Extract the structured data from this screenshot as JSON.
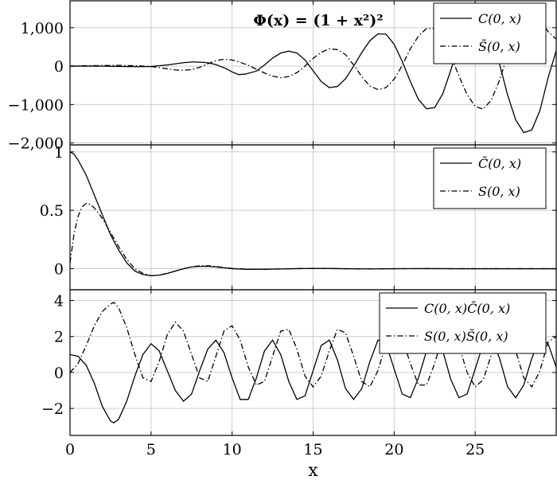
{
  "chart_data": [
    {
      "type": "line",
      "title": "Φ(x) = (1 + x²)²",
      "xlabel": "",
      "ylabel": "",
      "xlim": [
        0,
        30
      ],
      "ylim": [
        -2050,
        1700
      ],
      "grid": true,
      "legend_position": "top-right",
      "x_ticks": [
        0,
        5,
        10,
        15,
        20,
        25
      ],
      "y_ticks": [
        -2000,
        -1000,
        0,
        1000
      ],
      "y_tick_labels": [
        "−2,000",
        "−1,000",
        "0",
        "1,000"
      ],
      "series": [
        {
          "name": "C(0, x)",
          "style": "solid",
          "x": [
            0,
            1,
            2,
            3,
            4,
            5,
            6,
            7,
            7.6,
            8.5,
            9,
            9.6,
            10,
            10.4,
            10.8,
            11.5,
            12,
            12.5,
            13,
            13.5,
            14,
            14.5,
            15,
            15.5,
            16,
            16.5,
            17,
            17.5,
            18,
            18.5,
            19,
            19.5,
            20,
            20.5,
            21,
            21.5,
            22,
            22.5,
            23,
            23.5,
            24,
            24.5,
            25,
            25.5,
            26,
            26.5,
            27,
            27.5,
            28,
            28.5,
            29,
            29.5,
            30
          ],
          "values": [
            0,
            0,
            -2,
            -8,
            -15,
            -10,
            30,
            90,
            110,
            90,
            40,
            -60,
            -150,
            -220,
            -210,
            -130,
            30,
            210,
            340,
            390,
            340,
            160,
            -120,
            -400,
            -560,
            -530,
            -330,
            0,
            350,
            660,
            840,
            830,
            570,
            120,
            -400,
            -870,
            -1110,
            -1080,
            -720,
            -100,
            590,
            1100,
            1360,
            1250,
            810,
            60,
            -750,
            -1400,
            -1730,
            -1660,
            -1150,
            -300,
            400
          ]
        },
        {
          "name": "S̃(0, x)",
          "style": "dashdot",
          "x": [
            0,
            1,
            2,
            3,
            4,
            5,
            6,
            6.5,
            7,
            7.5,
            8,
            8.5,
            9,
            9.5,
            10,
            10.5,
            11,
            11.5,
            12,
            12.5,
            13,
            13.5,
            14,
            14.5,
            15,
            15.5,
            16,
            16.5,
            17,
            17.5,
            18,
            18.5,
            19,
            19.5,
            20,
            20.5,
            21,
            21.5,
            22,
            22.5,
            23,
            23.5,
            24,
            24.5,
            25,
            25.5,
            26,
            26.5,
            27,
            27.5,
            28,
            28.5,
            29,
            29.5,
            30
          ],
          "values": [
            0,
            10,
            15,
            20,
            10,
            -10,
            -70,
            -100,
            -110,
            -90,
            -30,
            60,
            140,
            180,
            160,
            100,
            20,
            -80,
            -180,
            -260,
            -300,
            -270,
            -170,
            0,
            200,
            360,
            450,
            430,
            300,
            30,
            -270,
            -520,
            -610,
            -560,
            -340,
            20,
            450,
            780,
            980,
            980,
            720,
            270,
            -260,
            -740,
            -1050,
            -1120,
            -880,
            -370,
            290,
            900,
            1300,
            1400,
            1200,
            900,
            700
          ]
        }
      ]
    },
    {
      "type": "line",
      "title": "",
      "xlabel": "",
      "ylabel": "",
      "xlim": [
        0,
        30
      ],
      "ylim": [
        -0.18,
        1.06
      ],
      "grid": true,
      "legend_position": "top-right",
      "x_ticks": [
        0,
        5,
        10,
        15,
        20,
        25
      ],
      "y_ticks": [
        0,
        0.5,
        1
      ],
      "y_tick_labels": [
        "0",
        "0.5",
        "1"
      ],
      "series": [
        {
          "name": "C̃(0, x)",
          "style": "solid",
          "x": [
            0,
            0.25,
            0.5,
            1,
            1.5,
            2,
            2.5,
            3,
            3.5,
            4,
            4.5,
            5,
            5.5,
            6,
            6.5,
            7,
            7.5,
            8,
            8.5,
            9,
            9.5,
            10,
            11,
            12,
            13,
            14,
            15,
            16,
            17,
            18,
            19,
            20,
            22,
            24,
            26,
            28,
            30
          ],
          "values": [
            1,
            0.98,
            0.93,
            0.8,
            0.63,
            0.46,
            0.29,
            0.16,
            0.05,
            -0.02,
            -0.05,
            -0.06,
            -0.055,
            -0.04,
            -0.02,
            0,
            0.015,
            0.02,
            0.02,
            0.015,
            0.008,
            0,
            -0.005,
            -0.004,
            -0.002,
            0.001,
            0.002,
            0.002,
            0,
            -0.001,
            -0.001,
            0,
            0.001,
            0,
            0,
            0,
            0
          ]
        },
        {
          "name": "S(0, x)",
          "style": "dashdot",
          "x": [
            0,
            0.25,
            0.5,
            0.75,
            1,
            1.25,
            1.5,
            2,
            2.5,
            3,
            3.5,
            4,
            4.5,
            5,
            5.5,
            6,
            6.5,
            7,
            7.5,
            8,
            8.5,
            9,
            9.5,
            10,
            11,
            12,
            13,
            14,
            15,
            16,
            17,
            18,
            19,
            20,
            22,
            24,
            26,
            28,
            30
          ],
          "values": [
            0.05,
            0.3,
            0.45,
            0.53,
            0.56,
            0.55,
            0.52,
            0.43,
            0.31,
            0.19,
            0.08,
            0,
            -0.04,
            -0.06,
            -0.055,
            -0.04,
            -0.02,
            0,
            0.015,
            0.025,
            0.025,
            0.02,
            0.01,
            0.003,
            -0.004,
            -0.005,
            -0.002,
            0.001,
            0.003,
            0.002,
            0,
            -0.001,
            -0.001,
            0,
            0.001,
            0,
            0,
            0,
            0
          ]
        }
      ]
    },
    {
      "type": "line",
      "title": "",
      "xlabel": "x",
      "ylabel": "",
      "xlim": [
        0,
        30
      ],
      "ylim": [
        -3.5,
        4.6
      ],
      "grid": true,
      "legend_position": "top-right",
      "x_ticks": [
        0,
        5,
        10,
        15,
        20,
        25
      ],
      "y_ticks": [
        -2,
        0,
        2,
        4
      ],
      "y_tick_labels": [
        "−2",
        "0",
        "2",
        "4"
      ],
      "series": [
        {
          "name": "C(0, x)C̃(0, x)",
          "style": "solid",
          "x": [
            0,
            0.5,
            1,
            1.5,
            2,
            2.5,
            2.7,
            3,
            3.5,
            4,
            4.5,
            5,
            5.5,
            6,
            6.5,
            7,
            7.5,
            8,
            8.5,
            9,
            9.5,
            10,
            10.5,
            11,
            11.5,
            12,
            12.5,
            13,
            13.5,
            14,
            14.5,
            15,
            15.5,
            16,
            16.5,
            17,
            17.5,
            18,
            18.5,
            19,
            19.5,
            20,
            20.5,
            21,
            21.5,
            22,
            22.5,
            23,
            23.5,
            24,
            24.5,
            25,
            25.5,
            26,
            26.5,
            27,
            27.5,
            28,
            28.5,
            29,
            29.5,
            30
          ],
          "values": [
            1,
            0.9,
            0.4,
            -0.6,
            -1.9,
            -2.7,
            -2.8,
            -2.6,
            -1.6,
            -0.2,
            1.0,
            1.6,
            1.2,
            0.1,
            -1.0,
            -1.6,
            -1.2,
            0.1,
            1.3,
            1.8,
            1.1,
            -0.3,
            -1.5,
            -1.5,
            -0.3,
            1.2,
            1.8,
            1.0,
            -0.5,
            -1.5,
            -1.3,
            0.1,
            1.5,
            1.8,
            0.7,
            -0.9,
            -1.5,
            -0.9,
            0.6,
            1.8,
            1.6,
            0.2,
            -1.2,
            -1.4,
            -0.3,
            1.2,
            1.9,
            1.2,
            -0.4,
            -1.4,
            -1.2,
            0.2,
            1.6,
            1.9,
            0.8,
            -0.8,
            -1.4,
            -0.7,
            0.8,
            1.9,
            1.6,
            0.3
          ]
        },
        {
          "name": "S(0, x)S̃(0, x)",
          "style": "dashdot",
          "x": [
            0,
            0.5,
            1,
            1.5,
            2,
            2.5,
            2.7,
            3,
            3.5,
            4,
            4.5,
            5,
            5.5,
            6,
            6.5,
            7,
            7.5,
            8,
            8.5,
            9,
            9.5,
            10,
            10.5,
            11,
            11.5,
            12,
            12.5,
            13,
            13.5,
            14,
            14.5,
            15,
            15.5,
            16,
            16.5,
            17,
            17.5,
            18,
            18.5,
            19,
            19.5,
            20,
            20.5,
            21,
            21.5,
            22,
            22.5,
            23,
            23.5,
            24,
            24.5,
            25,
            25.5,
            26,
            26.5,
            27,
            27.5,
            28,
            28.5,
            29,
            29.5,
            30
          ],
          "values": [
            0,
            0.5,
            1.5,
            2.6,
            3.4,
            3.8,
            3.9,
            3.6,
            2.5,
            1.0,
            -0.3,
            -0.5,
            0.6,
            2.1,
            2.8,
            2.3,
            1.0,
            -0.3,
            -0.5,
            0.9,
            2.3,
            2.6,
            1.8,
            0.3,
            -0.7,
            -0.5,
            0.9,
            2.3,
            2.4,
            1.3,
            -0.2,
            -0.8,
            -0.2,
            1.2,
            2.4,
            2.2,
            0.9,
            -0.5,
            -0.8,
            0.1,
            1.6,
            2.5,
            1.9,
            0.5,
            -0.7,
            -0.7,
            0.5,
            2.0,
            2.5,
            1.5,
            0,
            -0.8,
            -0.4,
            1.0,
            2.3,
            2.4,
            1.2,
            -0.3,
            -0.8,
            0.1,
            1.7,
            2.0
          ]
        }
      ]
    }
  ]
}
